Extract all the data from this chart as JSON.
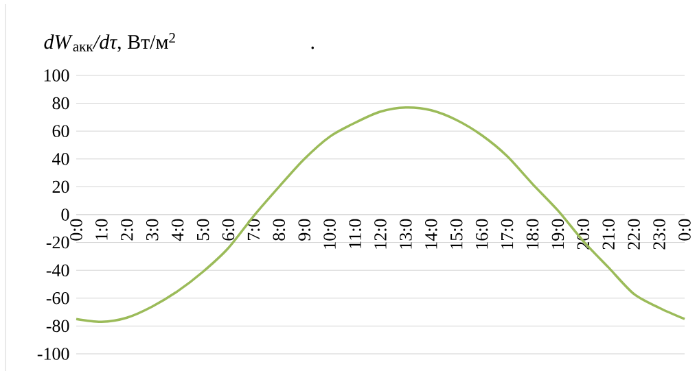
{
  "chart_data": {
    "type": "line",
    "title": "*dW*$_{акк}$*/dτ*, Вт/м$^{2}$",
    "categories": [
      "0:0",
      "1:0",
      "2:0",
      "3:0",
      "4:0",
      "5:0",
      "6:0",
      "7:0",
      "8:0",
      "9:0",
      "10:0",
      "11:0",
      "12:0",
      "13:0",
      "14:0",
      "15:0",
      "16:0",
      "17:0",
      "18:0",
      "19:0",
      "20:0",
      "21:0",
      "22:0",
      "23:0",
      "0:0"
    ],
    "values": [
      -75,
      -77,
      -74,
      -66,
      -55,
      -41,
      -24,
      -1,
      20,
      40,
      56,
      66,
      74,
      77,
      75,
      68,
      57,
      42,
      22,
      3,
      -19,
      -38,
      -57,
      -67,
      -75
    ],
    "color": "#9bbb59",
    "ylim": [
      -100,
      100
    ],
    "yticks": [
      -100,
      -80,
      -60,
      -40,
      -20,
      0,
      20,
      40,
      60,
      80,
      100
    ],
    "grid": "y",
    "marker": "none",
    "annotations": [
      "."
    ]
  }
}
